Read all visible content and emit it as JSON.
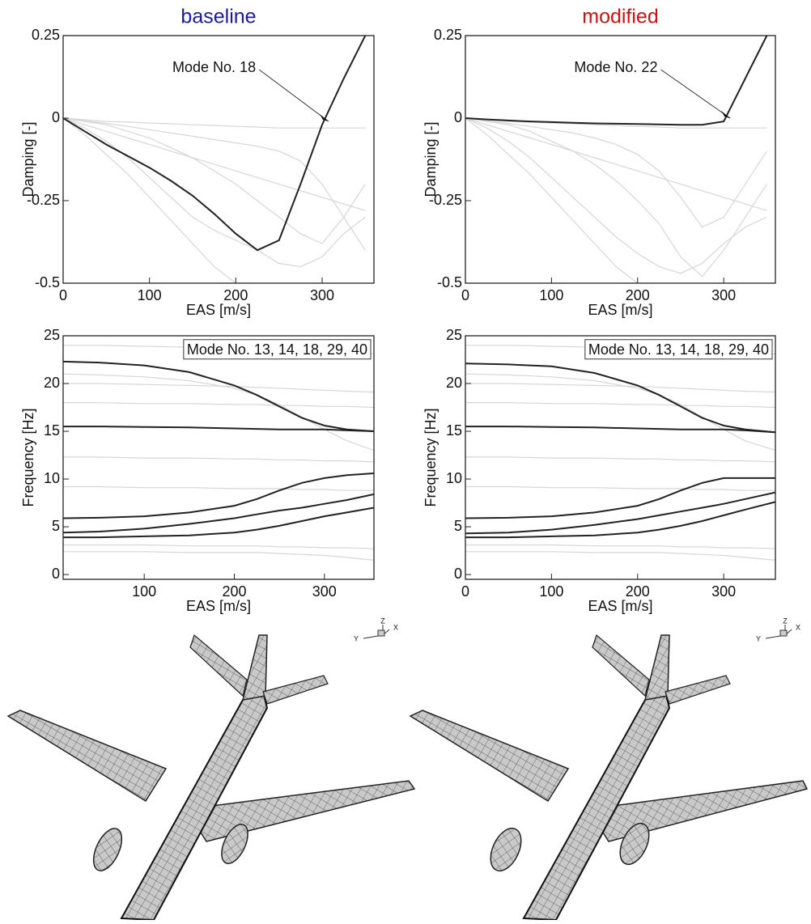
{
  "chart_data": [
    {
      "type": "line",
      "title": "baseline",
      "title_color": "#1a1aa8",
      "x_label": "EAS [m/s]",
      "y_label": "Damping [-]",
      "annotation": "Mode No. 18",
      "x": [
        0,
        25,
        50,
        75,
        100,
        125,
        150,
        175,
        200,
        225,
        250,
        275,
        300,
        325,
        350
      ],
      "xlim": [
        0,
        360
      ],
      "xticks": [
        0,
        100,
        200,
        300
      ],
      "ylim": [
        -0.5,
        0.25
      ],
      "yticks": [
        -0.5,
        -0.25,
        0,
        0.25
      ],
      "series": [
        {
          "color": "#d6d6d6",
          "values": [
            0,
            -0.005,
            -0.01,
            -0.012,
            -0.015,
            -0.017,
            -0.02,
            -0.022,
            -0.025,
            -0.027,
            -0.03,
            -0.03,
            -0.03,
            -0.03,
            -0.03
          ]
        },
        {
          "color": "#d6d6d6",
          "values": [
            0,
            -0.02,
            -0.04,
            -0.06,
            -0.08,
            -0.1,
            -0.12,
            -0.14,
            -0.16,
            -0.18,
            -0.2,
            -0.22,
            -0.24,
            -0.26,
            -0.28
          ]
        },
        {
          "color": "#d6d6d6",
          "values": [
            0,
            -0.05,
            -0.11,
            -0.17,
            -0.24,
            -0.31,
            -0.38,
            -0.45,
            -0.5,
            null,
            null,
            null,
            null,
            null,
            null
          ]
        },
        {
          "color": "#d6d6d6",
          "values": [
            0,
            -0.01,
            -0.02,
            -0.04,
            -0.06,
            -0.09,
            -0.12,
            -0.16,
            -0.2,
            -0.25,
            -0.3,
            -0.35,
            -0.38,
            -0.3,
            -0.2
          ]
        },
        {
          "color": "#d6d6d6",
          "values": [
            0,
            -0.008,
            -0.016,
            -0.025,
            -0.035,
            -0.045,
            -0.055,
            -0.065,
            -0.075,
            -0.085,
            -0.1,
            -0.13,
            -0.2,
            -0.3,
            -0.4
          ]
        },
        {
          "color": "#d6d6d6",
          "values": [
            0,
            -0.03,
            -0.07,
            -0.12,
            -0.18,
            -0.24,
            -0.3,
            -0.34,
            -0.37,
            -0.4,
            -0.44,
            -0.45,
            -0.42,
            -0.35,
            -0.3
          ]
        },
        {
          "color": "#222222",
          "values": [
            0,
            -0.04,
            -0.08,
            -0.115,
            -0.15,
            -0.19,
            -0.235,
            -0.29,
            -0.35,
            -0.4,
            -0.37,
            -0.2,
            -0.02,
            0.12,
            0.25
          ]
        }
      ]
    },
    {
      "type": "line",
      "x_label": "EAS [m/s]",
      "y_label": "Frequency [Hz]",
      "annotation": "Mode No. 13, 14, 18, 29, 40",
      "x": [
        10,
        50,
        100,
        150,
        200,
        225,
        250,
        275,
        300,
        325,
        355
      ],
      "xlim": [
        10,
        355
      ],
      "xticks": [
        100,
        200,
        300
      ],
      "ylim": [
        -0.5,
        25
      ],
      "yticks": [
        0,
        5,
        10,
        15,
        20,
        25
      ],
      "series": [
        {
          "color": "#d6d6d6",
          "values": [
            24,
            24,
            23.9,
            23.8,
            23.7,
            23.6,
            23.5,
            23.4,
            23.3,
            23.2,
            23.1
          ]
        },
        {
          "color": "#d6d6d6",
          "values": [
            20,
            20,
            19.9,
            19.8,
            19.7,
            19.6,
            19.5,
            19.4,
            19.3,
            19.2,
            19.1
          ]
        },
        {
          "color": "#d6d6d6",
          "values": [
            18,
            18,
            17.9,
            17.9,
            17.8,
            17.8,
            17.7,
            17.7,
            17.6,
            17.6,
            17.5
          ]
        },
        {
          "color": "#d6d6d6",
          "values": [
            21,
            20.9,
            20.7,
            20.3,
            19.5,
            18.8,
            17.8,
            16.5,
            15.2,
            14,
            13
          ]
        },
        {
          "color": "#d6d6d6",
          "values": [
            12.3,
            12.3,
            12.2,
            12.2,
            12.1,
            12.1,
            12,
            12,
            11.9,
            11.9,
            11.8
          ]
        },
        {
          "color": "#d6d6d6",
          "values": [
            9.2,
            9.2,
            9.1,
            9.1,
            9,
            9,
            9,
            8.9,
            8.9,
            8.8,
            8.8
          ]
        },
        {
          "color": "#d6d6d6",
          "values": [
            3.1,
            3.1,
            3.1,
            3,
            3,
            3,
            2.9,
            2.9,
            2.8,
            2.8,
            2.7
          ]
        },
        {
          "color": "#d6d6d6",
          "values": [
            2.4,
            2.4,
            2.4,
            2.3,
            2.3,
            2.3,
            2.2,
            2.1,
            2,
            1.8,
            1.5
          ]
        },
        {
          "color": "#222222",
          "values": [
            22.3,
            22.2,
            21.9,
            21.2,
            19.8,
            18.8,
            17.6,
            16.4,
            15.6,
            15.2,
            15
          ]
        },
        {
          "color": "#222222",
          "values": [
            15.5,
            15.5,
            15.45,
            15.4,
            15.3,
            15.25,
            15.2,
            15.2,
            15.2,
            15.1,
            15
          ]
        },
        {
          "color": "#222222",
          "values": [
            5.9,
            5.95,
            6.1,
            6.5,
            7.2,
            7.9,
            8.8,
            9.6,
            10.1,
            10.4,
            10.6
          ]
        },
        {
          "color": "#222222",
          "values": [
            4.4,
            4.5,
            4.8,
            5.3,
            5.9,
            6.3,
            6.7,
            7,
            7.4,
            7.8,
            8.4
          ]
        },
        {
          "color": "#222222",
          "values": [
            3.9,
            3.9,
            4,
            4.1,
            4.4,
            4.7,
            5.1,
            5.6,
            6.1,
            6.5,
            7
          ]
        }
      ]
    },
    {
      "type": "line",
      "title": "modified",
      "title_color": "#d21010",
      "x_label": "EAS [m/s]",
      "y_label": "Damping [-]",
      "annotation": "Mode No. 22",
      "x": [
        0,
        25,
        50,
        75,
        100,
        125,
        150,
        175,
        200,
        225,
        250,
        275,
        300,
        325,
        350
      ],
      "xlim": [
        0,
        360
      ],
      "xticks": [
        0,
        100,
        200,
        300
      ],
      "ylim": [
        -0.5,
        0.25
      ],
      "yticks": [
        -0.5,
        -0.25,
        0,
        0.25
      ],
      "series": [
        {
          "color": "#d6d6d6",
          "values": [
            0,
            -0.005,
            -0.01,
            -0.012,
            -0.015,
            -0.017,
            -0.02,
            -0.022,
            -0.025,
            -0.027,
            -0.03,
            -0.03,
            -0.03,
            -0.03,
            -0.03
          ]
        },
        {
          "color": "#d6d6d6",
          "values": [
            0,
            -0.02,
            -0.04,
            -0.06,
            -0.08,
            -0.1,
            -0.12,
            -0.14,
            -0.16,
            -0.18,
            -0.2,
            -0.22,
            -0.24,
            -0.26,
            -0.28
          ]
        },
        {
          "color": "#d6d6d6",
          "values": [
            0,
            -0.05,
            -0.11,
            -0.17,
            -0.24,
            -0.31,
            -0.38,
            -0.45,
            -0.5,
            null,
            null,
            null,
            null,
            null,
            null
          ]
        },
        {
          "color": "#d6d6d6",
          "values": [
            0,
            -0.01,
            -0.02,
            -0.04,
            -0.07,
            -0.1,
            -0.14,
            -0.19,
            -0.25,
            -0.32,
            -0.42,
            -0.48,
            -0.4,
            -0.3,
            -0.2
          ]
        },
        {
          "color": "#d6d6d6",
          "values": [
            0,
            -0.008,
            -0.016,
            -0.025,
            -0.035,
            -0.045,
            -0.06,
            -0.08,
            -0.11,
            -0.16,
            -0.24,
            -0.33,
            -0.3,
            -0.2,
            -0.1
          ]
        },
        {
          "color": "#d6d6d6",
          "values": [
            0,
            -0.03,
            -0.07,
            -0.12,
            -0.18,
            -0.24,
            -0.3,
            -0.36,
            -0.41,
            -0.45,
            -0.47,
            -0.44,
            -0.38,
            -0.33,
            -0.3
          ]
        },
        {
          "color": "#222222",
          "values": [
            0,
            -0.004,
            -0.007,
            -0.01,
            -0.012,
            -0.014,
            -0.016,
            -0.017,
            -0.018,
            -0.019,
            -0.02,
            -0.02,
            -0.01,
            0.12,
            0.25
          ]
        }
      ]
    },
    {
      "type": "line",
      "x_label": "EAS [m/s]",
      "y_label": "Frequency [Hz]",
      "annotation": "Mode No. 13, 14, 18, 29, 40",
      "x": [
        0,
        50,
        100,
        150,
        200,
        225,
        250,
        275,
        300,
        325,
        360
      ],
      "xlim": [
        0,
        360
      ],
      "xticks": [
        0,
        100,
        200,
        300
      ],
      "ylim": [
        -0.5,
        25
      ],
      "yticks": [
        0,
        5,
        10,
        15,
        20,
        25
      ],
      "series": [
        {
          "color": "#d6d6d6",
          "values": [
            24,
            24,
            23.9,
            23.8,
            23.7,
            23.6,
            23.5,
            23.4,
            23.3,
            23.2,
            23.1
          ]
        },
        {
          "color": "#d6d6d6",
          "values": [
            20,
            20,
            19.9,
            19.8,
            19.7,
            19.6,
            19.5,
            19.4,
            19.3,
            19.2,
            19.1
          ]
        },
        {
          "color": "#d6d6d6",
          "values": [
            18,
            18,
            17.9,
            17.9,
            17.8,
            17.8,
            17.7,
            17.7,
            17.6,
            17.6,
            17.5
          ]
        },
        {
          "color": "#d6d6d6",
          "values": [
            21,
            20.9,
            20.7,
            20.3,
            19.5,
            18.8,
            17.8,
            16.5,
            15.2,
            14,
            13
          ]
        },
        {
          "color": "#d6d6d6",
          "values": [
            12.3,
            12.3,
            12.2,
            12.2,
            12.1,
            12.1,
            12,
            12,
            11.9,
            11.9,
            11.8
          ]
        },
        {
          "color": "#d6d6d6",
          "values": [
            9.2,
            9.2,
            9.1,
            9.1,
            9,
            9,
            9,
            8.9,
            8.9,
            8.8,
            8.8
          ]
        },
        {
          "color": "#d6d6d6",
          "values": [
            3.1,
            3.1,
            3.1,
            3,
            3,
            3,
            2.9,
            2.9,
            2.8,
            2.8,
            2.7
          ]
        },
        {
          "color": "#d6d6d6",
          "values": [
            2.4,
            2.4,
            2.4,
            2.3,
            2.3,
            2.3,
            2.2,
            2.1,
            2,
            1.8,
            1.5
          ]
        },
        {
          "color": "#222222",
          "values": [
            22.1,
            22,
            21.8,
            21.1,
            19.8,
            18.8,
            17.6,
            16.4,
            15.6,
            15.2,
            14.9
          ]
        },
        {
          "color": "#222222",
          "values": [
            15.5,
            15.5,
            15.45,
            15.4,
            15.3,
            15.25,
            15.2,
            15.2,
            15.2,
            15.1,
            14.9
          ]
        },
        {
          "color": "#222222",
          "values": [
            5.9,
            5.95,
            6.1,
            6.5,
            7.2,
            7.9,
            8.8,
            9.6,
            10.1,
            10.1,
            10.1
          ]
        },
        {
          "color": "#222222",
          "values": [
            4.3,
            4.4,
            4.7,
            5.2,
            5.8,
            6.2,
            6.6,
            7,
            7.4,
            7.9,
            8.6
          ]
        },
        {
          "color": "#222222",
          "values": [
            3.9,
            3.9,
            4,
            4.1,
            4.4,
            4.7,
            5.1,
            5.6,
            6.2,
            6.8,
            7.6
          ]
        }
      ]
    }
  ],
  "triad": [
    "Z",
    "Y",
    "X"
  ]
}
